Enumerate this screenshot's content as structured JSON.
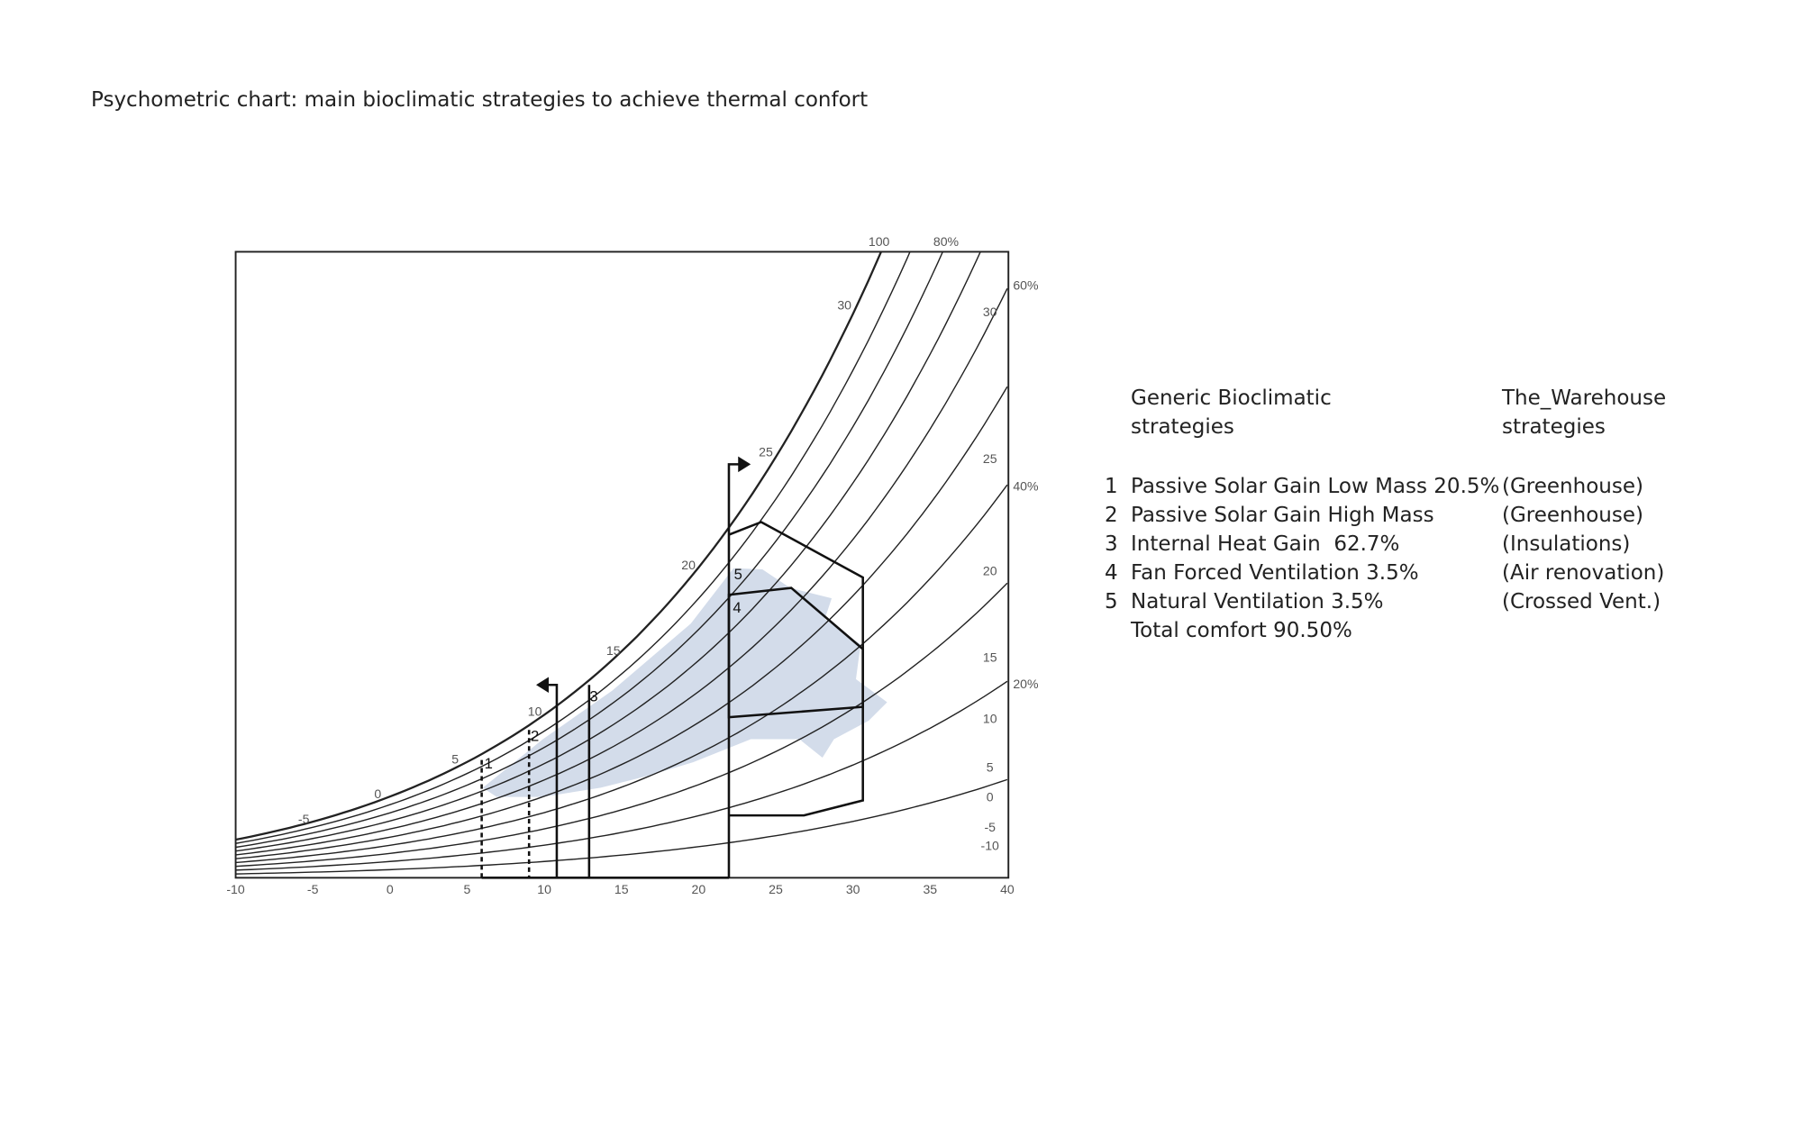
{
  "title": "Psychometric chart: main bioclimatic strategies to achieve thermal confort",
  "chart": {
    "x_ticks": [
      "-10",
      "-5",
      "0",
      "5",
      "10",
      "15",
      "20",
      "25",
      "30",
      "35",
      "40"
    ],
    "rh_labels": [
      "100",
      "80%",
      "60%",
      "40%",
      "20%"
    ],
    "left_temp_labels": [
      "30",
      "25",
      "20",
      "15",
      "10",
      "5",
      "0",
      "-5"
    ],
    "right_temp_labels": [
      "30",
      "25",
      "20",
      "15",
      "10",
      "5",
      "0",
      "-5",
      "-10"
    ],
    "zone_labels": [
      "1",
      "2",
      "3",
      "4",
      "5"
    ]
  },
  "legend": {
    "header_generic": "Generic Bioclimatic strategies",
    "header_site": "The_Warehouse strategies",
    "items": [
      {
        "number": "1",
        "generic": "Passive Solar Gain Low Mass 20.5%",
        "site": "(Greenhouse)"
      },
      {
        "number": "2",
        "generic": "Passive Solar Gain High Mass",
        "site": "(Greenhouse)"
      },
      {
        "number": "3",
        "generic": "Internal Heat Gain  62.7%",
        "site": "(Insulations)"
      },
      {
        "number": "4",
        "generic": "Fan Forced Ventilation 3.5%",
        "site": "(Air renovation)"
      },
      {
        "number": "5",
        "generic": "Natural Ventilation 3.5%",
        "site": "(Crossed Vent.)"
      }
    ],
    "total": "Total comfort 90.50%"
  }
}
